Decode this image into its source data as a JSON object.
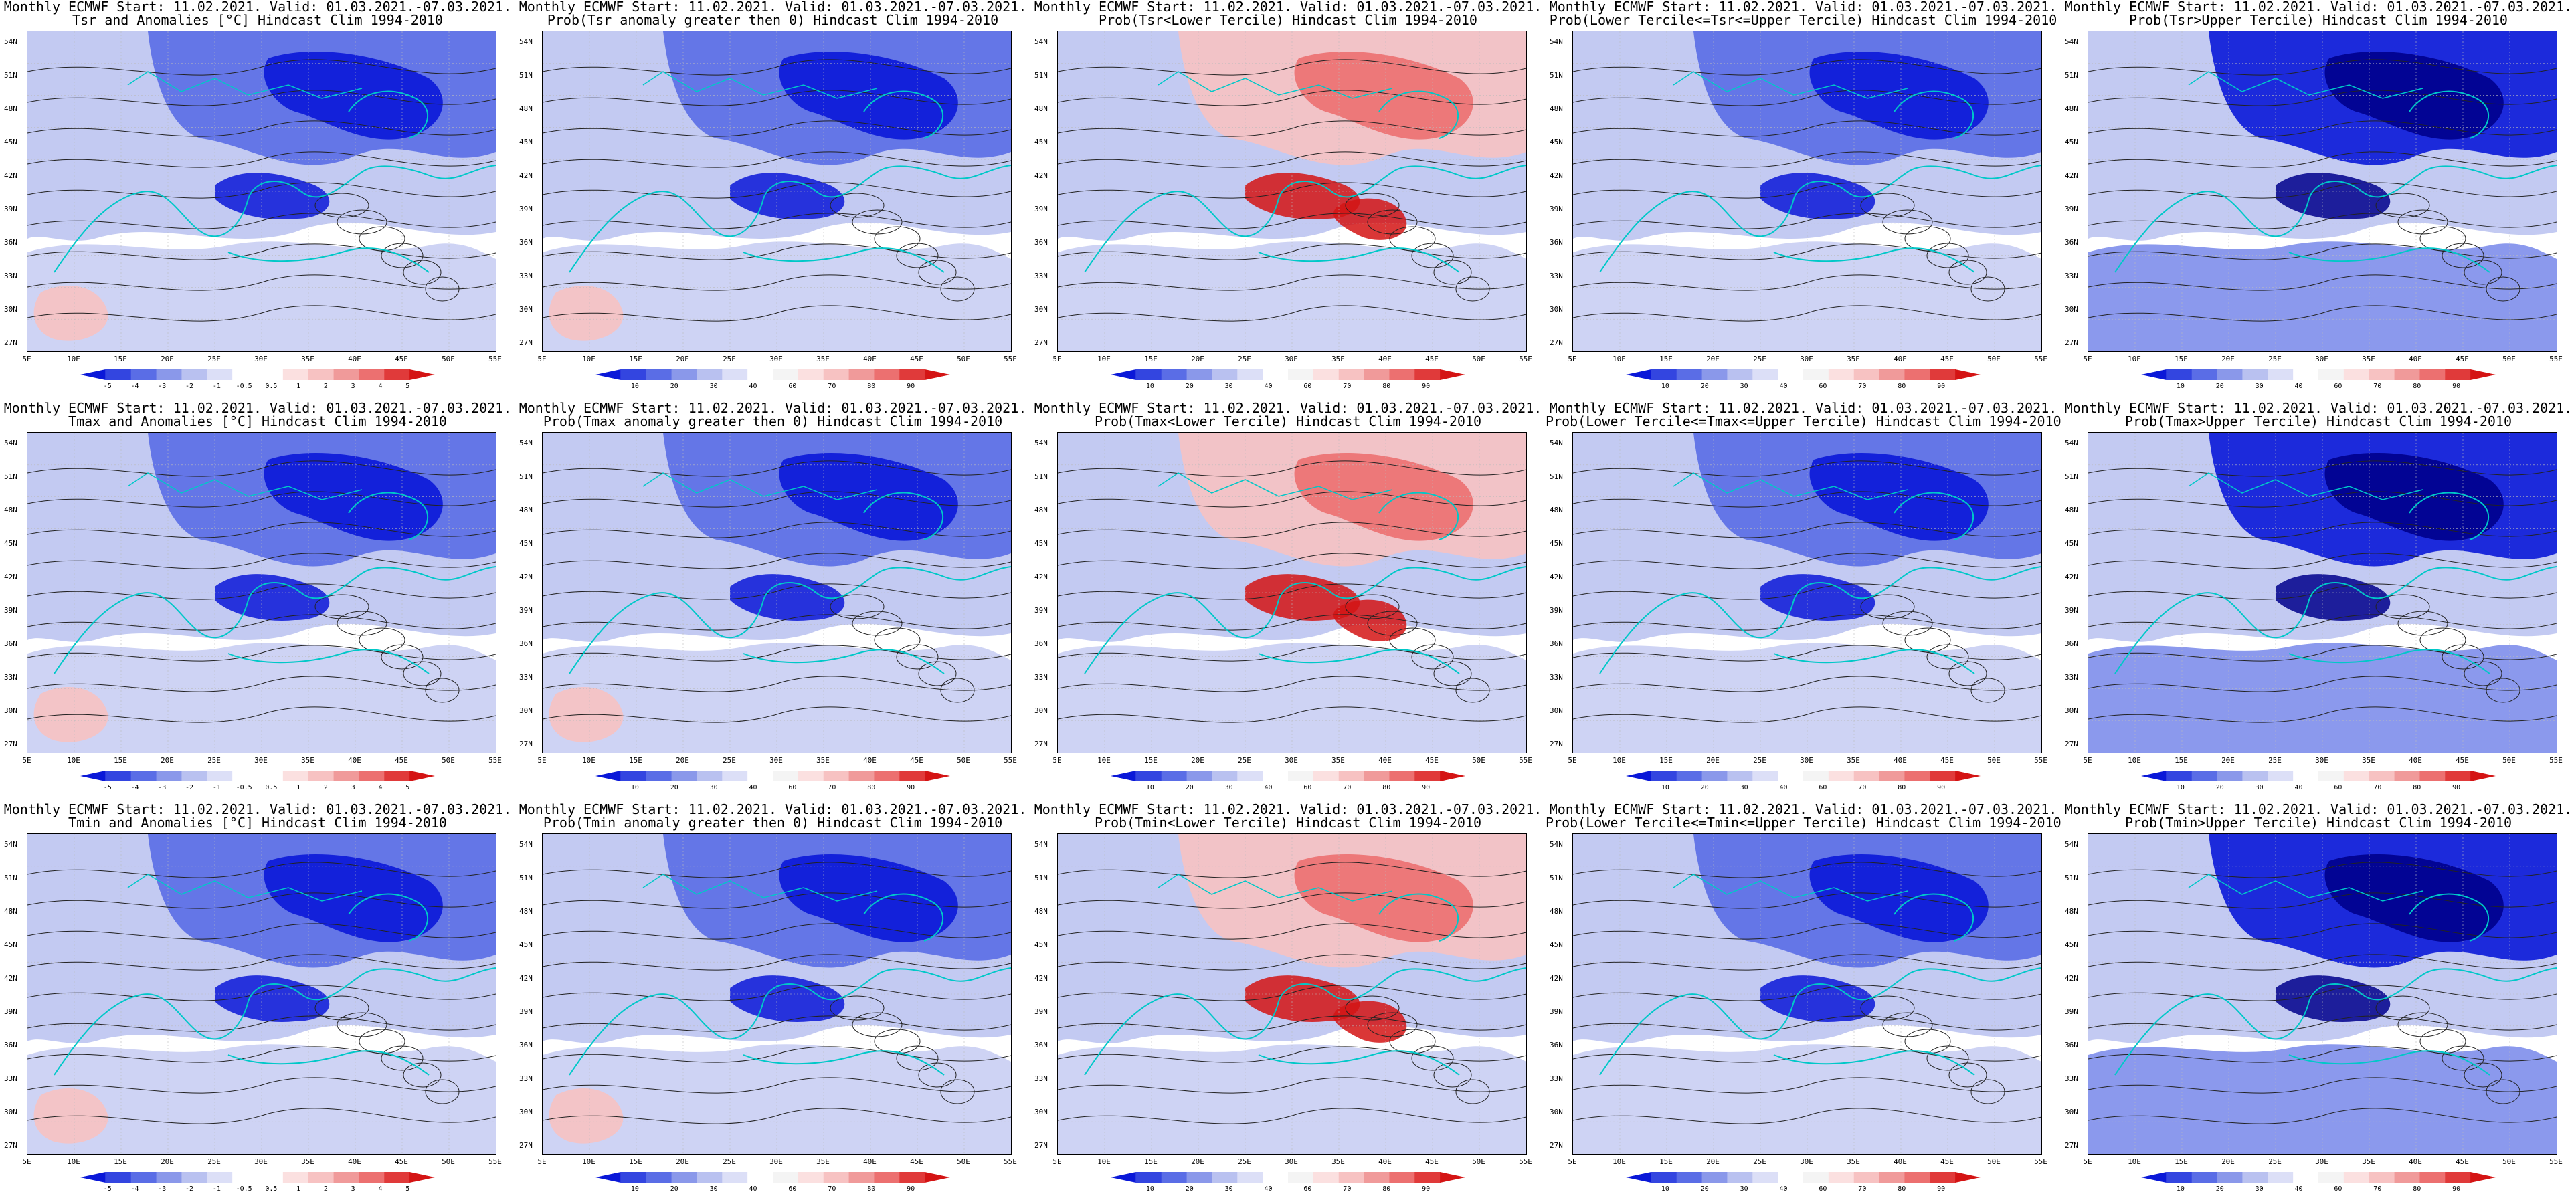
{
  "colors": {
    "cold_strong": "#0a18d8",
    "cold_mid": "#5a6de6",
    "cold_light": "#b9c1f0",
    "neutral": "#ffffff",
    "warm_light": "#f7c2c2",
    "warm_mid": "#ec7070",
    "warm_strong": "#d41414",
    "coast": "#00c8c8",
    "contour": "#222222"
  },
  "lat_labels": [
    "54N",
    "51N",
    "48N",
    "45N",
    "42N",
    "39N",
    "36N",
    "33N",
    "30N",
    "27N"
  ],
  "lon_labels": [
    "5E",
    "10E",
    "15E",
    "20E",
    "25E",
    "30E",
    "35E",
    "40E",
    "45E",
    "50E",
    "55E"
  ],
  "colorbars": {
    "anom": [
      "-5",
      "-4",
      "-3",
      "-2",
      "-1",
      "-0.5",
      "0.5",
      "1",
      "2",
      "3",
      "4",
      "5"
    ],
    "prob": [
      "10",
      "20",
      "30",
      "40",
      "60",
      "70",
      "80",
      "90"
    ]
  },
  "panels": [
    {
      "line1": "Monthly ECMWF Start: 11.02.2021. Valid: 01.03.2021.-07.03.2021.",
      "line2": "Tsr and Anomalies [°C] Hindcast Clim 1994-2010",
      "cb": "anom",
      "fill": "cold_mid"
    },
    {
      "line1": "Monthly ECMWF Start: 11.02.2021. Valid: 01.03.2021.-07.03.2021.",
      "line2": "Prob(Tsr anomaly greater then 0) Hindcast Clim 1994-2010",
      "cb": "prob",
      "fill": "cold_mid"
    },
    {
      "line1": "Monthly ECMWF Start: 11.02.2021. Valid: 01.03.2021.-07.03.2021.",
      "line2": "Prob(Tsr<Lower Tercile) Hindcast Clim 1994-2010",
      "cb": "prob",
      "fill": "warm_mid"
    },
    {
      "line1": "Monthly ECMWF Start: 11.02.2021. Valid: 01.03.2021.-07.03.2021.",
      "line2": "Prob(Lower Tercile<=Tsr<=Upper Tercile) Hindcast Clim 1994-2010",
      "cb": "prob",
      "fill": "cold_mid"
    },
    {
      "line1": "Monthly ECMWF Start: 11.02.2021. Valid: 01.03.2021.-07.03.2021.",
      "line2": "Prob(Tsr>Upper Tercile) Hindcast Clim 1994-2010",
      "cb": "prob",
      "fill": "cold_strong"
    },
    {
      "line1": "Monthly ECMWF Start: 11.02.2021. Valid: 01.03.2021.-07.03.2021.",
      "line2": "Tmax and Anomalies [°C] Hindcast Clim 1994-2010",
      "cb": "anom",
      "fill": "cold_mid"
    },
    {
      "line1": "Monthly ECMWF Start: 11.02.2021. Valid: 01.03.2021.-07.03.2021.",
      "line2": "Prob(Tmax anomaly greater then 0) Hindcast Clim 1994-2010",
      "cb": "prob",
      "fill": "cold_mid"
    },
    {
      "line1": "Monthly ECMWF Start: 11.02.2021. Valid: 01.03.2021.-07.03.2021.",
      "line2": "Prob(Tmax<Lower Tercile) Hindcast Clim 1994-2010",
      "cb": "prob",
      "fill": "warm_mid"
    },
    {
      "line1": "Monthly ECMWF Start: 11.02.2021. Valid: 01.03.2021.-07.03.2021.",
      "line2": "Prob(Lower Tercile<=Tmax<=Upper Tercile) Hindcast Clim 1994-2010",
      "cb": "prob",
      "fill": "cold_mid"
    },
    {
      "line1": "Monthly ECMWF Start: 11.02.2021. Valid: 01.03.2021.-07.03.2021.",
      "line2": "Prob(Tmax>Upper Tercile) Hindcast Clim 1994-2010",
      "cb": "prob",
      "fill": "cold_strong"
    },
    {
      "line1": "Monthly ECMWF Start: 11.02.2021. Valid: 01.03.2021.-07.03.2021.",
      "line2": "Tmin and Anomalies [°C] Hindcast Clim 1994-2010",
      "cb": "anom",
      "fill": "cold_mid"
    },
    {
      "line1": "Monthly ECMWF Start: 11.02.2021. Valid: 01.03.2021.-07.03.2021.",
      "line2": "Prob(Tmin anomaly greater then 0) Hindcast Clim 1994-2010",
      "cb": "prob",
      "fill": "cold_mid"
    },
    {
      "line1": "Monthly ECMWF Start: 11.02.2021. Valid: 01.03.2021.-07.03.2021.",
      "line2": "Prob(Tmin<Lower Tercile) Hindcast Clim 1994-2010",
      "cb": "prob",
      "fill": "warm_mid"
    },
    {
      "line1": "Monthly ECMWF Start: 11.02.2021. Valid: 01.03.2021.-07.03.2021.",
      "line2": "Prob(Lower Tercile<=Tmin<=Upper Tercile) Hindcast Clim 1994-2010",
      "cb": "prob",
      "fill": "cold_mid"
    },
    {
      "line1": "Monthly ECMWF Start: 11.02.2021. Valid: 01.03.2021.-07.03.2021.",
      "line2": "Prob(Tmin>Upper Tercile) Hindcast Clim 1994-2010",
      "cb": "prob",
      "fill": "cold_strong"
    }
  ]
}
